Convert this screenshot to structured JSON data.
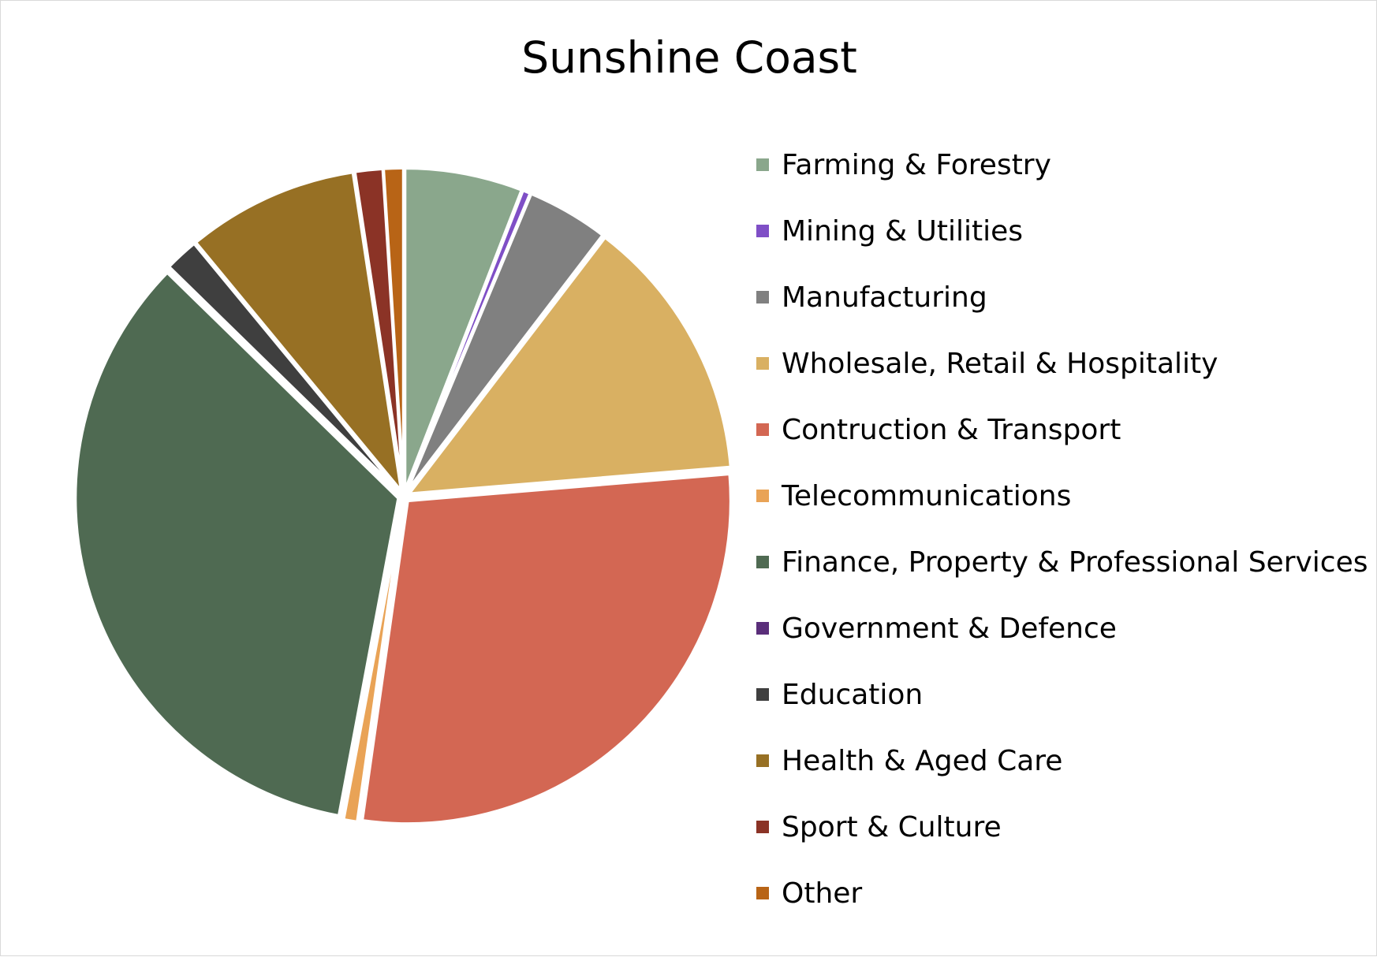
{
  "chart_data": {
    "type": "pie",
    "title": "Sunshine Coast",
    "legend_position": "right",
    "exploded": true,
    "start_angle_deg": 0,
    "direction": "clockwise",
    "slices": [
      {
        "label": "Farming & Forestry",
        "value": 5.9,
        "color": "#8aa78c"
      },
      {
        "label": "Mining & Utilities",
        "value": 0.4,
        "color": "#7f4fc6"
      },
      {
        "label": "Manufacturing",
        "value": 4.1,
        "color": "#808080"
      },
      {
        "label": "Wholesale, Retail & Hospitality",
        "value": 13.3,
        "color": "#d9b062"
      },
      {
        "label": "Contruction & Transport",
        "value": 28.6,
        "color": "#d36753"
      },
      {
        "label": "Telecommunications",
        "value": 0.7,
        "color": "#e9a356"
      },
      {
        "label": "Finance, Property & Professional Services",
        "value": 34.4,
        "color": "#4f6a52"
      },
      {
        "label": "Government & Defence",
        "value": 0.0,
        "color": "#5a2e7a"
      },
      {
        "label": "Education",
        "value": 1.7,
        "color": "#3f3f3f"
      },
      {
        "label": "Health & Aged Care",
        "value": 8.6,
        "color": "#977024"
      },
      {
        "label": "Sport & Culture",
        "value": 1.4,
        "color": "#8b3326"
      },
      {
        "label": "Other",
        "value": 1.0,
        "color": "#b86416"
      }
    ]
  }
}
